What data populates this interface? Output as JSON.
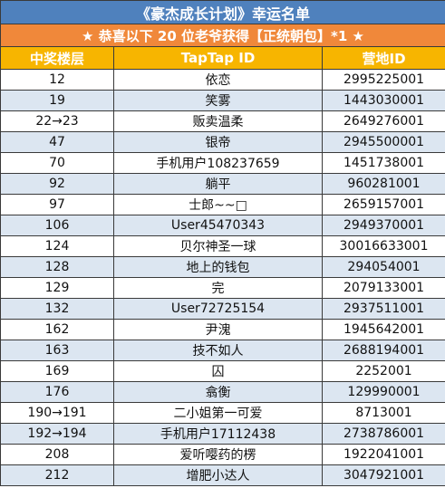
{
  "header": {
    "title": "《豪杰成长计划》幸运名单",
    "subtitle": "★ 恭喜以下 20 位老爷获得【正统朝包】*1 ★"
  },
  "table": {
    "columns": [
      "中奖楼层",
      "TapTap ID",
      "营地ID"
    ],
    "rows": [
      [
        "12",
        "依恋",
        "2995225001"
      ],
      [
        "19",
        "笑雾",
        "1443030001"
      ],
      [
        "22→23",
        "贩卖温柔",
        "2649276001"
      ],
      [
        "47",
        "银帝",
        "2945500001"
      ],
      [
        "70",
        "手机用户108237659",
        "1451738001"
      ],
      [
        "92",
        "躺平",
        "960281001"
      ],
      [
        "97",
        "士郎~~□",
        "2659157001"
      ],
      [
        "106",
        "User45470343",
        "2949370001"
      ],
      [
        "124",
        "贝尔神圣一球",
        "30016633001"
      ],
      [
        "128",
        "地上的钱包",
        "294054001"
      ],
      [
        "129",
        "完",
        "2079133001"
      ],
      [
        "132",
        "User72725154",
        "2937511001"
      ],
      [
        "162",
        "尹溾",
        "1945642001"
      ],
      [
        "163",
        "技不如人",
        "2688194001"
      ],
      [
        "169",
        "囚",
        "2252001"
      ],
      [
        "176",
        "翕衡",
        "129990001"
      ],
      [
        "190→191",
        "二小姐第一可爱",
        "8713001"
      ],
      [
        "192→194",
        "手机用户17112438",
        "2738786001"
      ],
      [
        "208",
        "爱听嘤药的楞",
        "1922041001"
      ],
      [
        "212",
        "增肥小达人",
        "3047921001"
      ]
    ]
  }
}
